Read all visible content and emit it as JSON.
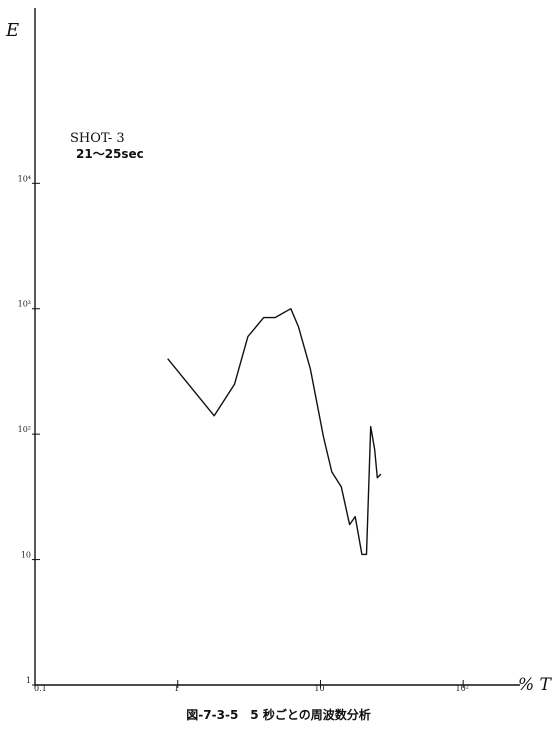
{
  "chart_data": {
    "type": "line",
    "title": "",
    "xlabel": "% T",
    "ylabel": "E",
    "xscale": "log",
    "yscale": "log",
    "xlim": [
      0.1,
      250
    ],
    "ylim": [
      1,
      250000
    ],
    "x_ticks": [
      {
        "value": 0.1,
        "label": "0.1"
      },
      {
        "value": 1,
        "label": "1"
      },
      {
        "value": 10,
        "label": "10"
      },
      {
        "value": 100,
        "label": "10²"
      }
    ],
    "y_ticks": [
      {
        "value": 1,
        "label": "1"
      },
      {
        "value": 10,
        "label": "10"
      },
      {
        "value": 100,
        "label": "10²"
      },
      {
        "value": 1000,
        "label": "10³"
      },
      {
        "value": 10000,
        "label": "10⁴"
      }
    ],
    "annotations": [
      "SHOT- 3",
      "21～25sec"
    ],
    "grid": false,
    "series": [
      {
        "x": [
          0.85,
          1.8,
          2.5,
          3.1,
          4.0,
          4.8,
          6.2,
          7.0,
          8.5,
          10.5,
          12.0,
          14.0,
          16.0,
          17.5,
          19.5,
          21.0,
          22.5,
          24.0,
          25.0,
          26.5
        ],
        "y": [
          400,
          140,
          250,
          600,
          850,
          850,
          1000,
          720,
          330,
          95,
          50,
          38,
          19,
          22,
          11,
          11,
          115,
          75,
          45,
          48
        ]
      }
    ]
  },
  "caption": "図-7-3-5　5 秒ごとの周波数分析"
}
